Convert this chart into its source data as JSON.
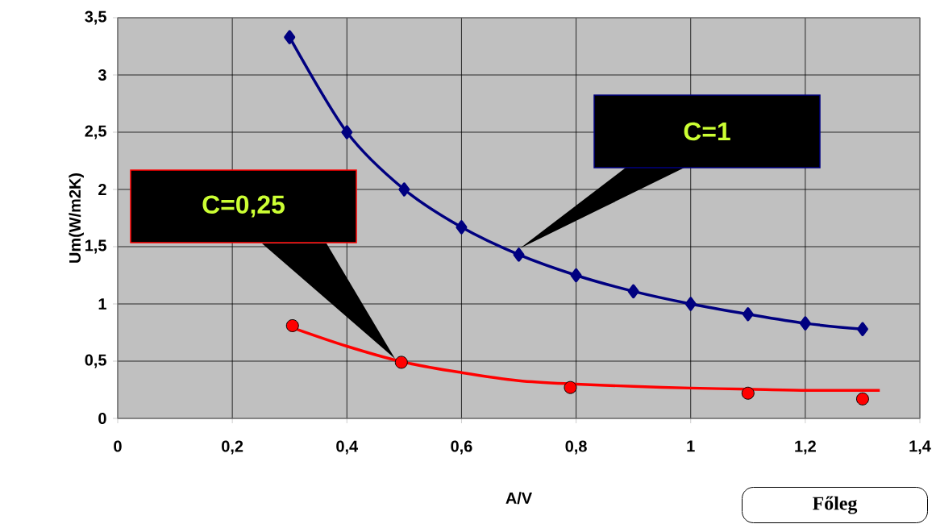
{
  "chart_data": {
    "type": "line",
    "xlabel": "A/V",
    "ylabel": "Um(W/m2K)",
    "xlim": [
      0,
      1.4
    ],
    "ylim": [
      0,
      3.5
    ],
    "xticks": [
      0,
      {
        "value": 0.2,
        "label": "0,2"
      },
      {
        "value": 0.4,
        "label": "0,4"
      },
      {
        "value": 0.6,
        "label": "0,6"
      },
      {
        "value": 0.8,
        "label": "0,8"
      },
      1,
      {
        "value": 1.2,
        "label": "1,2"
      },
      {
        "value": 1.4,
        "label": "1,4"
      }
    ],
    "yticks": [
      0,
      {
        "value": 0.5,
        "label": "0,5"
      },
      1,
      {
        "value": 1.5,
        "label": "1,5"
      },
      2,
      {
        "value": 2.5,
        "label": "2,5"
      },
      3,
      {
        "value": 3.5,
        "label": "3,5"
      }
    ],
    "grid": true,
    "line_style": "solid",
    "series": [
      {
        "color": "#000080",
        "marker": "diamond",
        "x": [
          0.3,
          0.4,
          0.5,
          0.6,
          0.7,
          0.8,
          0.9,
          1.0,
          1.1,
          1.2,
          1.3
        ],
        "values": [
          3.33,
          2.5,
          2.0,
          1.67,
          1.43,
          1.25,
          1.11,
          1.0,
          0.91,
          0.83,
          0.78
        ]
      },
      {
        "type": "scatter",
        "color": "#ff0000",
        "marker": "circle",
        "x": [
          0.305,
          0.495,
          0.79,
          1.1,
          1.3
        ],
        "values": [
          0.81,
          0.49,
          0.27,
          0.22,
          0.17
        ]
      },
      {
        "color": "#ff0000",
        "marker": "none",
        "x": [
          0.3,
          0.4,
          0.5,
          0.6,
          0.7,
          0.8,
          0.9,
          1.0,
          1.1,
          1.2,
          1.33
        ],
        "values": [
          0.8,
          0.63,
          0.49,
          0.4,
          0.33,
          0.3,
          0.28,
          0.265,
          0.255,
          0.245,
          0.245
        ]
      }
    ],
    "annotations": [
      "C=1",
      "C=0,25",
      "Főleg"
    ]
  }
}
